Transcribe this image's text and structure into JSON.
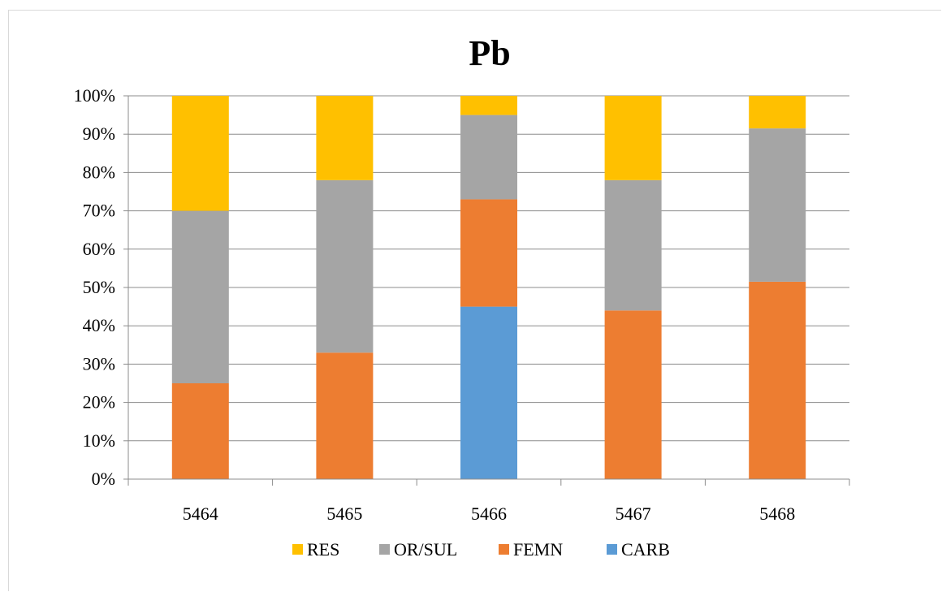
{
  "chart_data": {
    "type": "bar",
    "stacked": true,
    "percent_stacked": true,
    "title": "Pb",
    "xlabel": "",
    "ylabel": "",
    "categories": [
      "5464",
      "5465",
      "5466",
      "5467",
      "5468"
    ],
    "ylim": [
      0,
      100
    ],
    "y_ticks": [
      "0%",
      "10%",
      "20%",
      "30%",
      "40%",
      "50%",
      "60%",
      "70%",
      "80%",
      "90%",
      "100%"
    ],
    "grid": true,
    "legend_position": "bottom",
    "series": [
      {
        "name": "CARB",
        "color": "#5b9bd5",
        "values": [
          0,
          0,
          45,
          0,
          0
        ]
      },
      {
        "name": "FEMN",
        "color": "#ed7d31",
        "values": [
          25,
          33,
          28,
          44,
          51.5
        ]
      },
      {
        "name": "OR/SUL",
        "color": "#a5a5a5",
        "values": [
          45,
          45,
          22,
          34,
          40
        ]
      },
      {
        "name": "RES",
        "color": "#ffc000",
        "values": [
          30,
          22,
          5,
          22,
          8.5
        ]
      }
    ],
    "legend_order": [
      "RES",
      "OR/SUL",
      "FEMN",
      "CARB"
    ]
  }
}
